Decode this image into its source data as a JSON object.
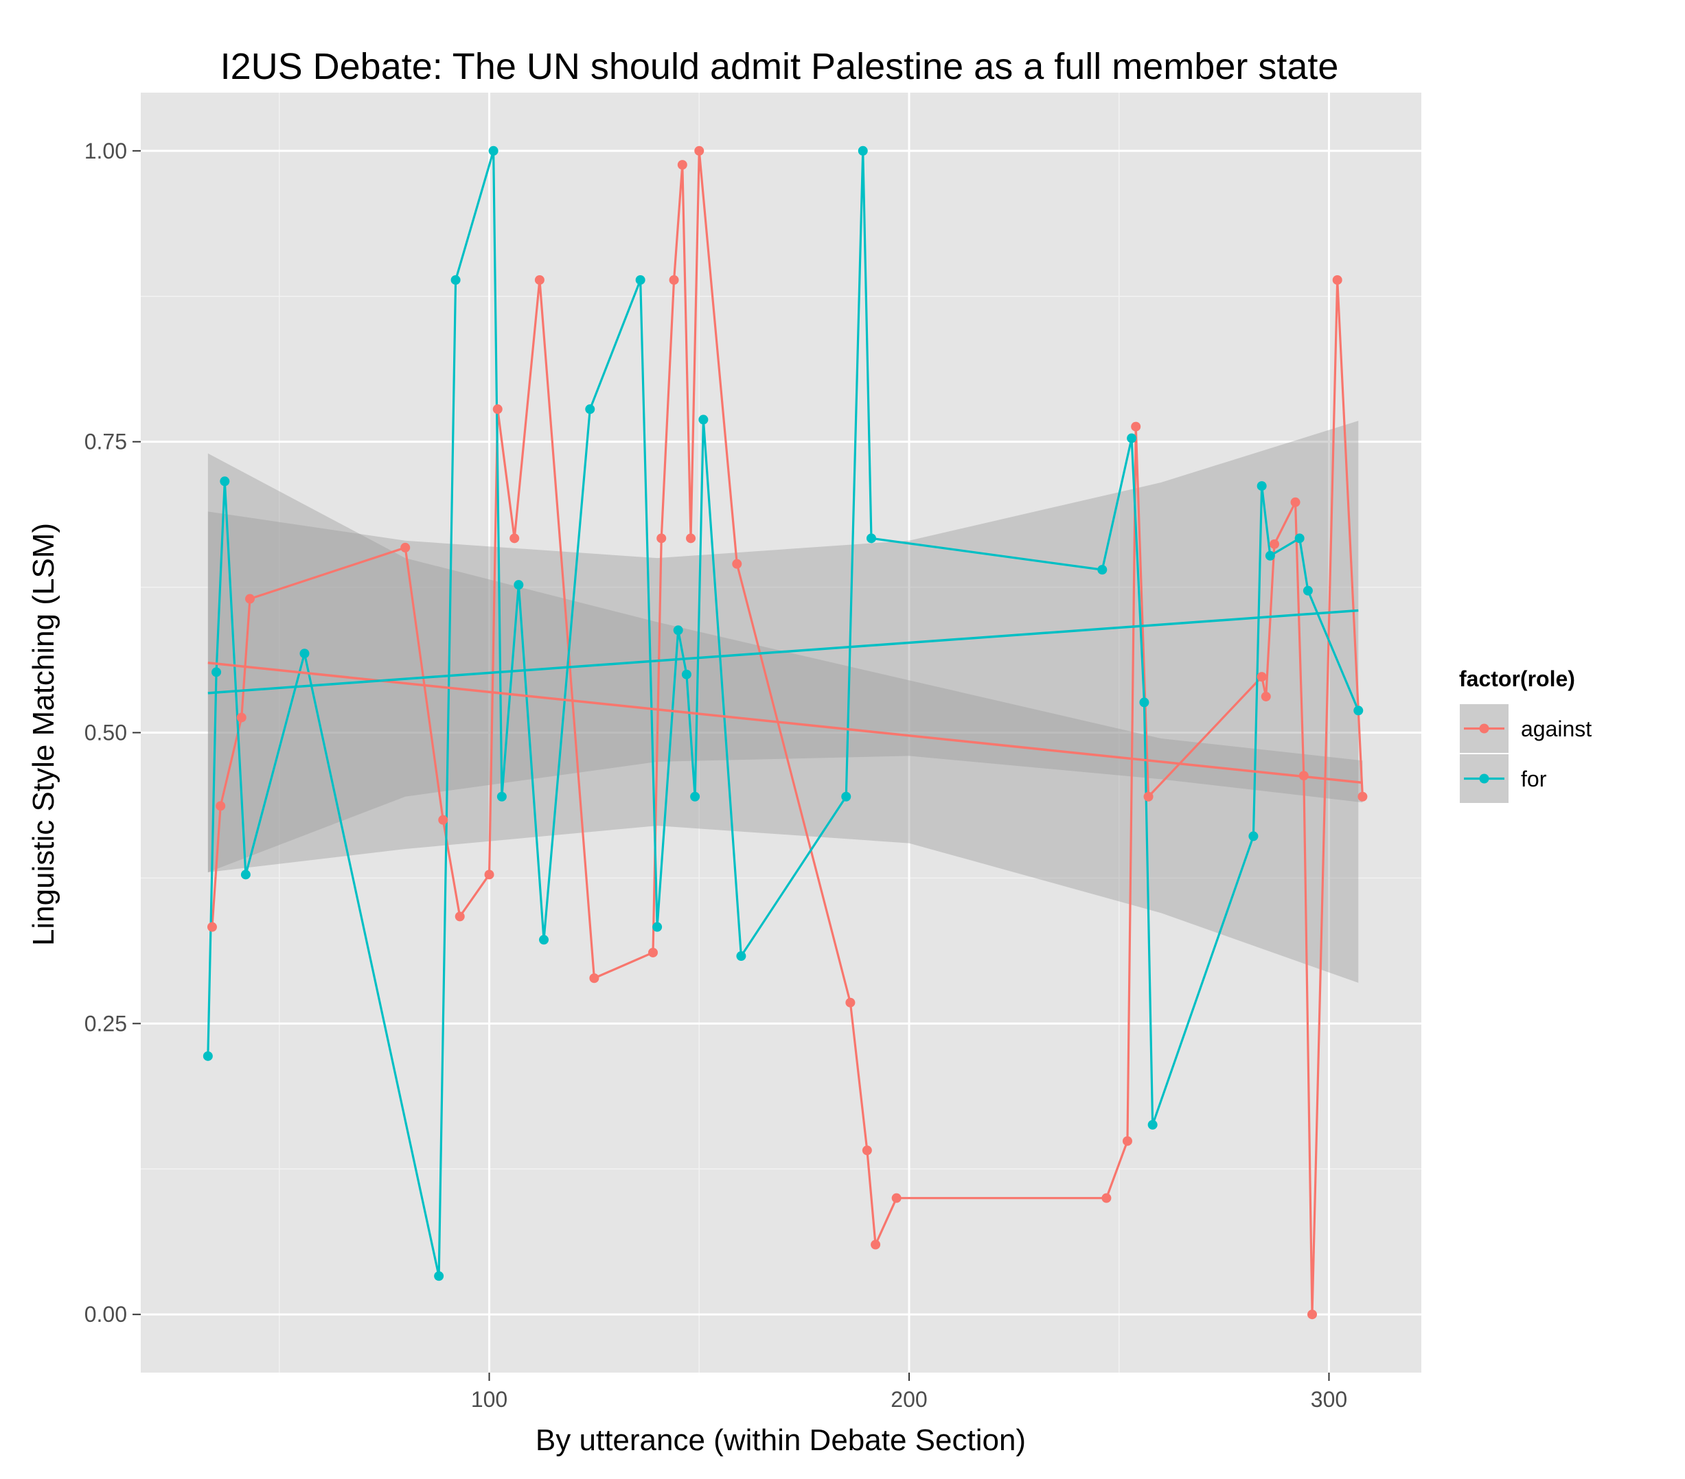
{
  "chart_data": {
    "type": "line",
    "title": "I2US Debate: The UN should admit Palestine as a full member state",
    "xlabel": "By utterance (within Debate Section)",
    "ylabel": "Linguistic Style Matching (LSM)",
    "xlim": [
      17,
      322
    ],
    "ylim": [
      -0.05,
      1.05
    ],
    "x_ticks": [
      100,
      200,
      300
    ],
    "x_tick_labels": [
      "100",
      "200",
      "300"
    ],
    "x_minor_ticks": [
      50,
      150,
      250
    ],
    "y_ticks": [
      0,
      0.25,
      0.5,
      0.75,
      1.0
    ],
    "y_tick_labels": [
      "0.00",
      "0.25",
      "0.50",
      "0.75",
      "1.00"
    ],
    "y_minor_ticks": [
      0.125,
      0.375,
      0.625,
      0.875
    ],
    "grid": true,
    "panel_background": "#e5e5e5",
    "legend": {
      "title": "factor(role)",
      "placement": "right",
      "entries": [
        "against",
        "for"
      ]
    },
    "series": [
      {
        "name": "against",
        "color": "#F8766D",
        "x": [
          34,
          36,
          41,
          43,
          80,
          89,
          93,
          100,
          102,
          106,
          112,
          125,
          139,
          141,
          144,
          146,
          148,
          150,
          159,
          186,
          190,
          192,
          197,
          247,
          252,
          254,
          257,
          284,
          285,
          287,
          292,
          294,
          296,
          302,
          308
        ],
        "y": [
          0.333,
          0.437,
          0.513,
          0.615,
          0.659,
          0.425,
          0.342,
          0.378,
          0.778,
          0.667,
          0.889,
          0.289,
          0.311,
          0.667,
          0.889,
          0.988,
          0.667,
          1.0,
          0.645,
          0.268,
          0.141,
          0.06,
          0.1,
          0.1,
          0.149,
          0.763,
          0.445,
          0.548,
          0.531,
          0.662,
          0.698,
          0.463,
          0.0,
          0.889,
          0.445
        ]
      },
      {
        "name": "for",
        "color": "#00BFC4",
        "x": [
          33,
          35,
          37,
          42,
          56,
          88,
          92,
          101,
          103,
          107,
          113,
          124,
          136,
          140,
          145,
          147,
          149,
          151,
          160,
          185,
          189,
          191,
          246,
          253,
          256,
          258,
          282,
          284,
          286,
          293,
          295,
          307
        ],
        "y": [
          0.222,
          0.552,
          0.716,
          0.378,
          0.568,
          0.033,
          0.889,
          1.0,
          0.445,
          0.627,
          0.322,
          0.778,
          0.889,
          0.333,
          0.588,
          0.55,
          0.445,
          0.769,
          0.308,
          0.445,
          1.0,
          0.667,
          0.64,
          0.753,
          0.526,
          0.163,
          0.411,
          0.712,
          0.652,
          0.667,
          0.622,
          0.519
        ]
      }
    ],
    "trend_lines": [
      {
        "name": "against",
        "color": "#F8766D",
        "x": [
          33,
          308
        ],
        "y": [
          0.56,
          0.457
        ],
        "band_x": [
          33,
          80,
          140,
          200,
          260,
          308
        ],
        "band_lower": [
          0.38,
          0.445,
          0.475,
          0.48,
          0.46,
          0.44
        ],
        "band_upper": [
          0.74,
          0.65,
          0.595,
          0.545,
          0.495,
          0.476
        ]
      },
      {
        "name": "for",
        "color": "#00BFC4",
        "x": [
          33,
          307
        ],
        "y": [
          0.534,
          0.605
        ],
        "band_x": [
          33,
          80,
          140,
          200,
          260,
          307
        ],
        "band_lower": [
          0.38,
          0.4,
          0.42,
          0.405,
          0.345,
          0.285
        ],
        "band_upper": [
          0.69,
          0.665,
          0.65,
          0.665,
          0.715,
          0.768
        ]
      }
    ]
  }
}
